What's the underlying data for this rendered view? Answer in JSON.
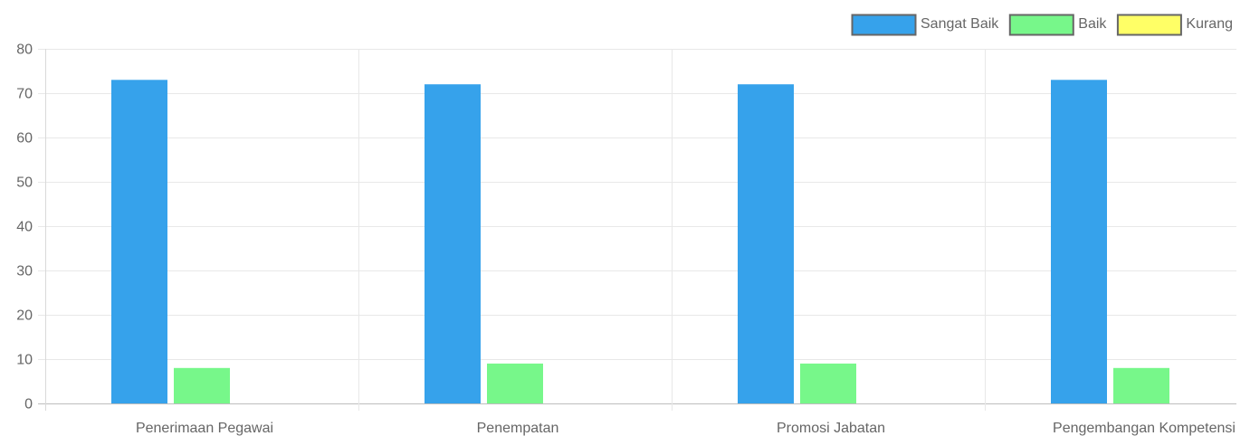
{
  "chart_data": {
    "type": "bar",
    "categories": [
      "Penerimaan Pegawai",
      "Penempatan",
      "Promosi Jabatan",
      "Pengembangan Kompetensi"
    ],
    "series": [
      {
        "name": "Sangat Baik",
        "color": "#36a2eb",
        "values": [
          73,
          72,
          72,
          73
        ]
      },
      {
        "name": "Baik",
        "color": "#77f78a",
        "values": [
          8,
          9,
          9,
          8
        ]
      },
      {
        "name": "Kurang",
        "color": "#ffff66",
        "values": [
          0,
          0,
          0,
          0
        ]
      }
    ],
    "ylim": [
      0,
      80
    ],
    "yticks": [
      0,
      10,
      20,
      30,
      40,
      50,
      60,
      70,
      80
    ],
    "grid": true,
    "legend_position": "top-right"
  }
}
